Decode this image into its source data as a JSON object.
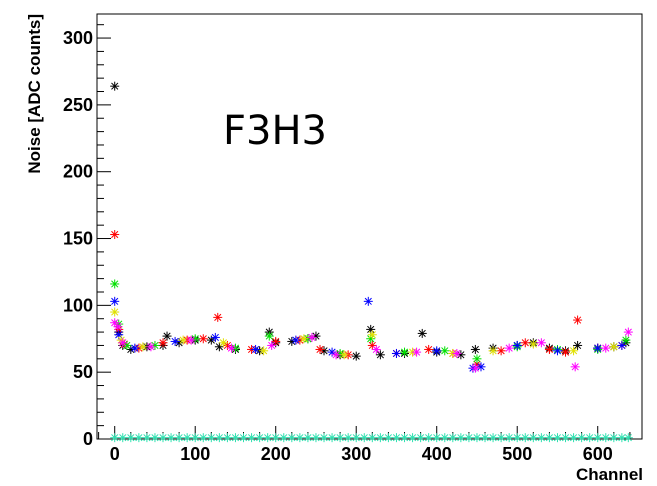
{
  "chart_data": {
    "type": "scatter",
    "title": "",
    "xlabel": "Channel",
    "ylabel": "Noise [ADC counts]",
    "annotation": "F3H3",
    "xlim": [
      -22,
      655
    ],
    "ylim": [
      0,
      318
    ],
    "x_ticks": [
      0,
      100,
      200,
      300,
      400,
      500,
      600
    ],
    "y_ticks": [
      0,
      50,
      100,
      150,
      200,
      250,
      300
    ],
    "grid": false,
    "legend": "none",
    "marker": "asterisk",
    "colors": {
      "black": "#000000",
      "red": "#ff0000",
      "green": "#00e000",
      "blue": "#0000ff",
      "yellow": "#e0e000",
      "magenta": "#ff00ff",
      "cyan": "#2fe0b0"
    },
    "series": [
      {
        "color": "#000000",
        "points": [
          [
            0,
            264
          ],
          [
            5,
            80
          ],
          [
            10,
            70
          ],
          [
            20,
            67
          ],
          [
            40,
            69
          ],
          [
            60,
            70
          ],
          [
            65,
            77
          ],
          [
            80,
            72
          ],
          [
            100,
            74
          ],
          [
            120,
            74
          ],
          [
            130,
            69
          ],
          [
            150,
            67
          ],
          [
            180,
            66
          ],
          [
            192,
            80
          ],
          [
            200,
            72
          ],
          [
            220,
            73
          ],
          [
            240,
            75
          ],
          [
            250,
            77
          ],
          [
            260,
            66
          ],
          [
            280,
            63
          ],
          [
            300,
            62
          ],
          [
            318,
            82
          ],
          [
            330,
            63
          ],
          [
            360,
            64
          ],
          [
            382,
            79
          ],
          [
            400,
            65
          ],
          [
            430,
            63
          ],
          [
            448,
            67
          ],
          [
            470,
            68
          ],
          [
            500,
            70
          ],
          [
            520,
            72
          ],
          [
            540,
            68
          ],
          [
            560,
            66
          ],
          [
            575,
            70
          ],
          [
            600,
            68
          ],
          [
            620,
            69
          ],
          [
            635,
            72
          ]
        ]
      },
      {
        "color": "#ff0000",
        "points": [
          [
            0,
            153
          ],
          [
            5,
            82
          ],
          [
            12,
            71
          ],
          [
            30,
            68
          ],
          [
            60,
            72
          ],
          [
            90,
            74
          ],
          [
            110,
            75
          ],
          [
            128,
            91
          ],
          [
            140,
            70
          ],
          [
            170,
            67
          ],
          [
            200,
            73
          ],
          [
            230,
            74
          ],
          [
            255,
            67
          ],
          [
            290,
            63
          ],
          [
            320,
            70
          ],
          [
            350,
            64
          ],
          [
            390,
            67
          ],
          [
            420,
            64
          ],
          [
            450,
            56
          ],
          [
            480,
            66
          ],
          [
            510,
            72
          ],
          [
            540,
            67
          ],
          [
            560,
            65
          ],
          [
            575,
            89
          ],
          [
            600,
            68
          ],
          [
            630,
            70
          ]
        ]
      },
      {
        "color": "#00e000",
        "points": [
          [
            0,
            116
          ],
          [
            5,
            86
          ],
          [
            15,
            70
          ],
          [
            50,
            70
          ],
          [
            100,
            75
          ],
          [
            150,
            68
          ],
          [
            192,
            77
          ],
          [
            240,
            75
          ],
          [
            280,
            64
          ],
          [
            318,
            75
          ],
          [
            360,
            65
          ],
          [
            410,
            66
          ],
          [
            450,
            60
          ],
          [
            500,
            69
          ],
          [
            550,
            67
          ],
          [
            600,
            67
          ],
          [
            635,
            74
          ]
        ]
      },
      {
        "color": "#0000ff",
        "points": [
          [
            0,
            103
          ],
          [
            5,
            78
          ],
          [
            25,
            68
          ],
          [
            75,
            73
          ],
          [
            125,
            76
          ],
          [
            175,
            67
          ],
          [
            225,
            74
          ],
          [
            270,
            65
          ],
          [
            315,
            103
          ],
          [
            350,
            64
          ],
          [
            400,
            66
          ],
          [
            445,
            53
          ],
          [
            455,
            54
          ],
          [
            500,
            70
          ],
          [
            550,
            66
          ],
          [
            600,
            68
          ],
          [
            630,
            70
          ]
        ]
      },
      {
        "color": "#e0e000",
        "points": [
          [
            0,
            95
          ],
          [
            8,
            74
          ],
          [
            35,
            69
          ],
          [
            85,
            74
          ],
          [
            135,
            72
          ],
          [
            185,
            66
          ],
          [
            235,
            75
          ],
          [
            285,
            63
          ],
          [
            320,
            78
          ],
          [
            370,
            65
          ],
          [
            420,
            64
          ],
          [
            470,
            66
          ],
          [
            520,
            71
          ],
          [
            570,
            66
          ],
          [
            620,
            69
          ]
        ]
      },
      {
        "color": "#ff00ff",
        "points": [
          [
            0,
            87
          ],
          [
            4,
            84
          ],
          [
            10,
            72
          ],
          [
            45,
            69
          ],
          [
            95,
            74
          ],
          [
            145,
            68
          ],
          [
            195,
            70
          ],
          [
            245,
            76
          ],
          [
            275,
            63
          ],
          [
            325,
            67
          ],
          [
            375,
            65
          ],
          [
            425,
            64
          ],
          [
            448,
            53
          ],
          [
            490,
            68
          ],
          [
            530,
            72
          ],
          [
            572,
            54
          ],
          [
            610,
            68
          ],
          [
            638,
            80
          ]
        ]
      },
      {
        "color": "#2fe0b0",
        "points": [
          [
            0,
            1
          ],
          [
            10,
            1
          ],
          [
            20,
            1
          ],
          [
            30,
            1
          ],
          [
            40,
            1
          ],
          [
            50,
            1
          ],
          [
            60,
            1
          ],
          [
            70,
            1
          ],
          [
            80,
            1
          ],
          [
            90,
            1
          ],
          [
            100,
            1
          ],
          [
            110,
            1
          ],
          [
            120,
            1
          ],
          [
            130,
            1
          ],
          [
            140,
            1
          ],
          [
            150,
            1
          ],
          [
            160,
            1
          ],
          [
            170,
            1
          ],
          [
            180,
            1
          ],
          [
            190,
            1
          ],
          [
            200,
            1
          ],
          [
            210,
            1
          ],
          [
            220,
            1
          ],
          [
            230,
            1
          ],
          [
            240,
            1
          ],
          [
            250,
            1
          ],
          [
            260,
            1
          ],
          [
            270,
            1
          ],
          [
            280,
            1
          ],
          [
            290,
            1
          ],
          [
            300,
            1
          ],
          [
            310,
            1
          ],
          [
            320,
            1
          ],
          [
            330,
            1
          ],
          [
            340,
            1
          ],
          [
            350,
            1
          ],
          [
            360,
            1
          ],
          [
            370,
            1
          ],
          [
            380,
            1
          ],
          [
            390,
            1
          ],
          [
            400,
            1
          ],
          [
            410,
            1
          ],
          [
            420,
            1
          ],
          [
            430,
            1
          ],
          [
            440,
            1
          ],
          [
            450,
            1
          ],
          [
            460,
            1
          ],
          [
            470,
            1
          ],
          [
            480,
            1
          ],
          [
            490,
            1
          ],
          [
            500,
            1
          ],
          [
            510,
            1
          ],
          [
            520,
            1
          ],
          [
            530,
            1
          ],
          [
            540,
            1
          ],
          [
            550,
            1
          ],
          [
            560,
            1
          ],
          [
            570,
            1
          ],
          [
            580,
            1
          ],
          [
            590,
            1
          ],
          [
            600,
            1
          ],
          [
            610,
            1
          ],
          [
            620,
            1
          ],
          [
            630,
            1
          ],
          [
            638,
            1
          ]
        ]
      }
    ]
  }
}
